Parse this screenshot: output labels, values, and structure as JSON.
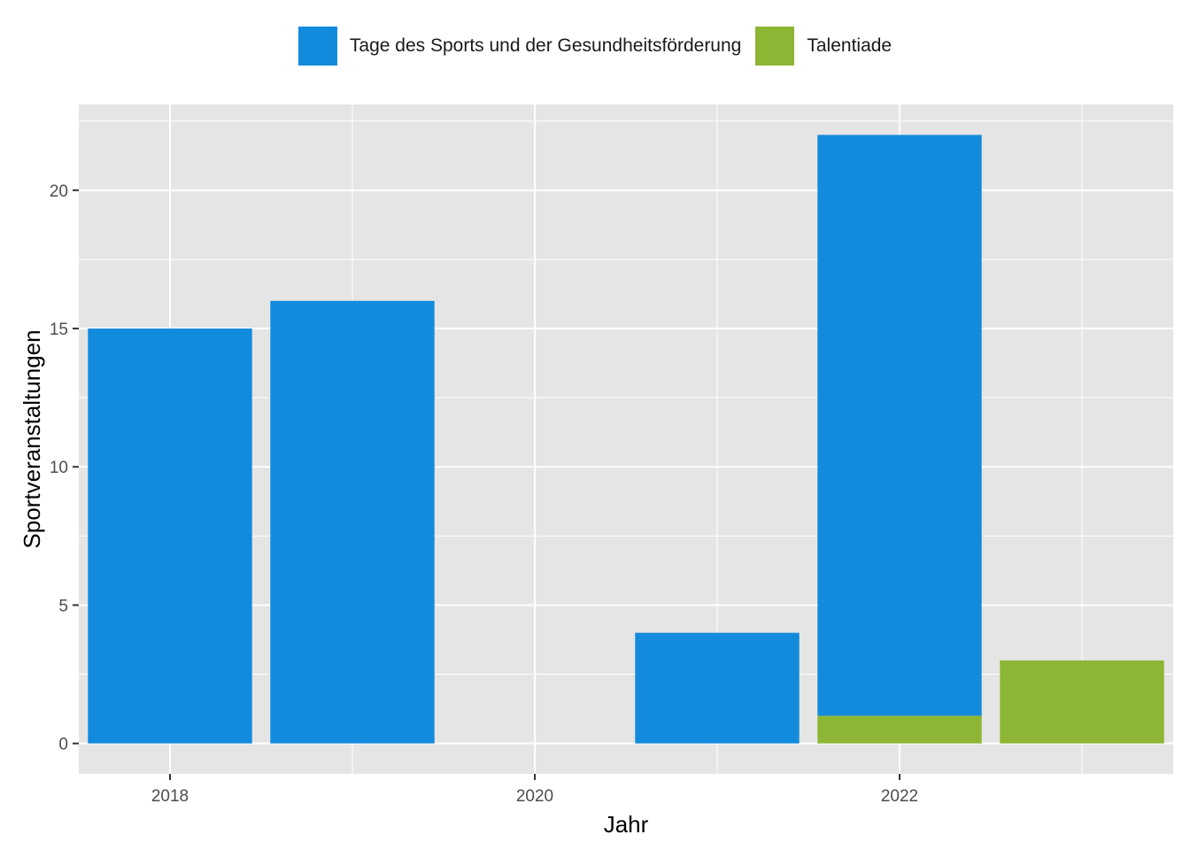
{
  "chart_data": {
    "type": "bar",
    "stacked": true,
    "xlabel": "Jahr",
    "ylabel": "Sportveranstaltungen",
    "xlim": [
      2017.5,
      2023.5
    ],
    "ylim": [
      -1.1,
      23.1
    ],
    "x_ticks": [
      2018,
      2020,
      2022
    ],
    "y_ticks": [
      0,
      5,
      10,
      15,
      20
    ],
    "grid": true,
    "legend_position": "top",
    "x": [
      2018,
      2019,
      2020,
      2021,
      2022,
      2023
    ],
    "series": [
      {
        "name": "Talentiade",
        "color": "#8db634",
        "values": [
          0,
          0,
          0,
          0,
          1,
          3
        ]
      },
      {
        "name": "Tage des Sports und der Gesundheitsförderung",
        "color": "#138bdc",
        "values": [
          15,
          16,
          0,
          4,
          21,
          0
        ]
      }
    ],
    "legend_order": [
      1,
      0
    ]
  },
  "colors": {
    "panel_background": "#e5e5e5",
    "grid": "#ffffff"
  }
}
